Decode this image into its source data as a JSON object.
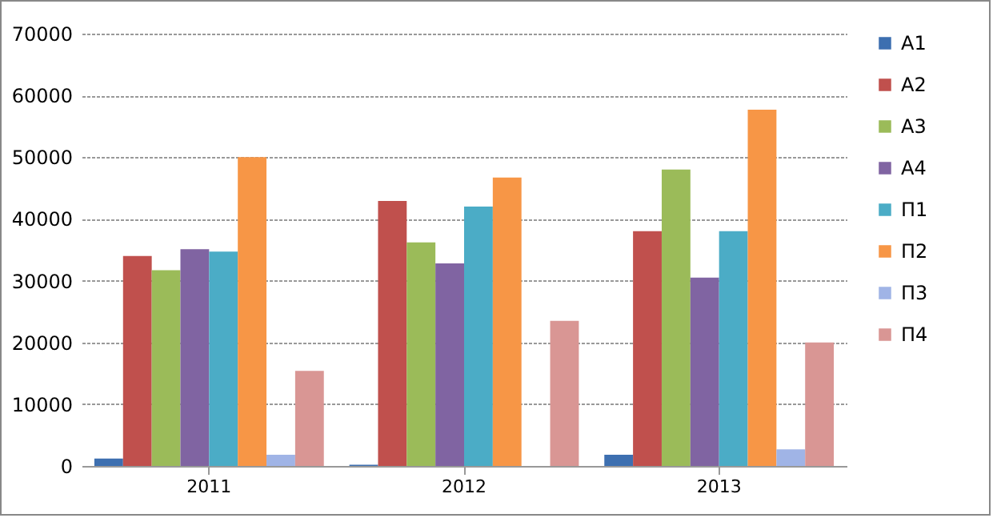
{
  "chart_data": {
    "type": "bar",
    "categories": [
      "2011",
      "2012",
      "2013"
    ],
    "series": [
      {
        "name": "А1",
        "color": "#3d6fb0",
        "values": [
          1200,
          200,
          1800
        ]
      },
      {
        "name": "А2",
        "color": "#c0504d",
        "values": [
          34000,
          42900,
          38000
        ]
      },
      {
        "name": "А3",
        "color": "#9bbb59",
        "values": [
          31700,
          36200,
          48000
        ]
      },
      {
        "name": "А4",
        "color": "#8064a2",
        "values": [
          35100,
          32800,
          30500
        ]
      },
      {
        "name": "П1",
        "color": "#4bacc6",
        "values": [
          34700,
          42000,
          38000
        ]
      },
      {
        "name": "П2",
        "color": "#f79646",
        "values": [
          50000,
          46700,
          57700
        ]
      },
      {
        "name": "П3",
        "color": "#a0b4e6",
        "values": [
          1800,
          0,
          2700
        ]
      },
      {
        "name": "П4",
        "color": "#d99694",
        "values": [
          15400,
          23500,
          20000
        ]
      }
    ],
    "ylim": [
      0,
      70000
    ],
    "yticks": [
      0,
      10000,
      20000,
      30000,
      40000,
      50000,
      60000,
      70000
    ],
    "grid": "y",
    "legend": "right"
  }
}
